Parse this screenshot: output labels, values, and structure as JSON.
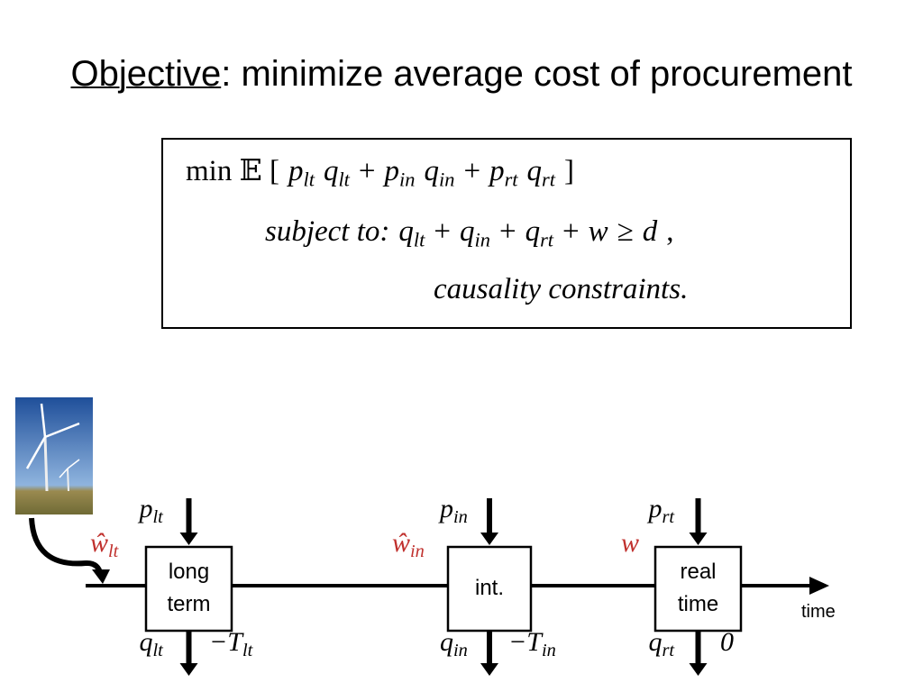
{
  "title": {
    "underlined": "Objective",
    "rest": ": minimize average cost of procurement"
  },
  "formula": {
    "line1": [
      "min 𝔼 [",
      {
        "text": "p",
        "sub": "lt"
      },
      {
        "text": "q",
        "sub": "lt"
      },
      "+",
      {
        "text": "p",
        "sub": "in"
      },
      {
        "text": "q",
        "sub": "in"
      },
      "+",
      {
        "text": "p",
        "sub": "rt"
      },
      {
        "text": "q",
        "sub": "rt"
      },
      "]"
    ],
    "line2": [
      {
        "text": "subject to:"
      },
      {
        "text": "q",
        "sub": "lt"
      },
      "+",
      {
        "text": "q",
        "sub": "in"
      },
      "+",
      {
        "text": "q",
        "sub": "rt"
      },
      "+",
      {
        "text": "w"
      },
      "≥",
      {
        "text": "d"
      },
      ","
    ],
    "line3": [
      {
        "text": "causality constraints."
      }
    ]
  },
  "diagram": {
    "boxes": [
      [
        "long",
        "term"
      ],
      [
        "int."
      ],
      [
        "real",
        "time"
      ]
    ],
    "prices": [
      {
        "text": "p",
        "sub": "lt"
      },
      {
        "text": "p",
        "sub": "in"
      },
      {
        "text": "p",
        "sub": "rt"
      }
    ],
    "quantities": [
      {
        "text": "q",
        "sub": "lt"
      },
      {
        "text": "q",
        "sub": "in"
      },
      {
        "text": "q",
        "sub": "rt"
      }
    ],
    "forecasts": [
      {
        "text": "ŵ",
        "sub": "lt"
      },
      {
        "text": "ŵ",
        "sub": "in"
      },
      {
        "text": "w"
      }
    ],
    "times": [
      {
        "text": "−T",
        "sub": "lt"
      },
      {
        "text": "−T",
        "sub": "in"
      },
      {
        "text": "0"
      }
    ],
    "axis_label": "time"
  }
}
